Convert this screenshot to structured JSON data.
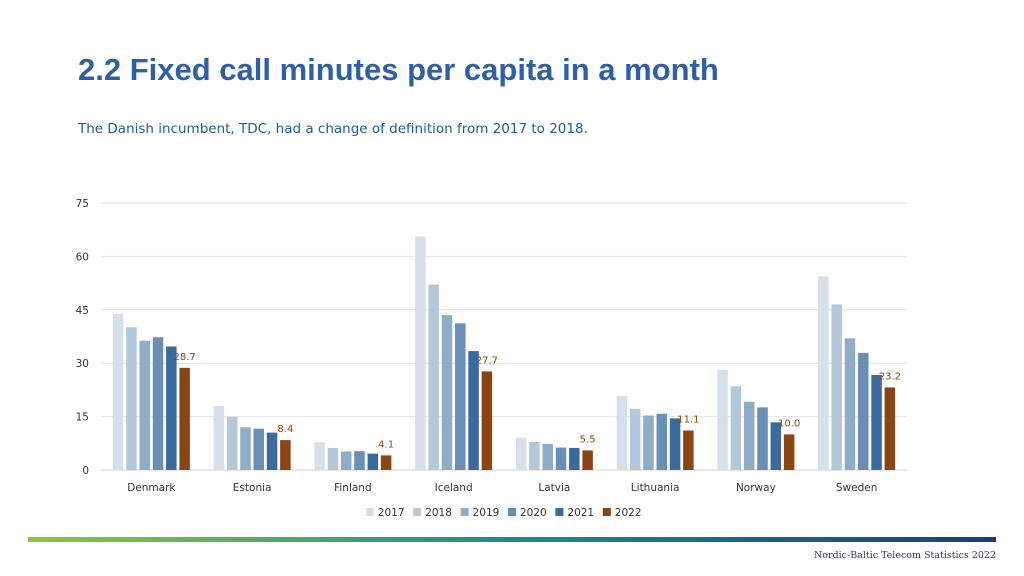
{
  "header": {
    "title": "2.2 Fixed call minutes per capita in a month",
    "subtitle": "The Danish incumbent, TDC, had a change of definition from 2017 to 2018."
  },
  "footer": {
    "text": "Nordic-Baltic Telecom Statistics 2022",
    "gradient_colors": [
      "#8cc63f",
      "#1f8a8a",
      "#1a3d7c"
    ]
  },
  "chart_data": {
    "type": "bar",
    "title": "",
    "xlabel": "",
    "ylabel": "",
    "ylim": [
      0,
      75
    ],
    "yticks": [
      0,
      15,
      30,
      45,
      60,
      75
    ],
    "grid": true,
    "legend_position": "bottom",
    "categories": [
      "Denmark",
      "Estonia",
      "Finland",
      "Iceland",
      "Latvia",
      "Lithuania",
      "Norway",
      "Sweden"
    ],
    "series": [
      {
        "name": "2017",
        "color": "#d6e0ea",
        "values": [
          43.9,
          18.0,
          7.8,
          65.6,
          9.1,
          20.8,
          28.1,
          54.4
        ]
      },
      {
        "name": "2018",
        "color": "#b4c8dc",
        "values": [
          40.1,
          14.9,
          6.2,
          52.1,
          7.9,
          17.2,
          23.5,
          46.5
        ]
      },
      {
        "name": "2019",
        "color": "#8fadc9",
        "values": [
          36.3,
          12.0,
          5.2,
          43.5,
          7.3,
          15.3,
          19.2,
          37.0
        ]
      },
      {
        "name": "2020",
        "color": "#6a8fb6",
        "values": [
          37.3,
          11.6,
          5.3,
          41.2,
          6.3,
          15.8,
          17.6,
          32.9
        ]
      },
      {
        "name": "2021",
        "color": "#3b6a9e",
        "values": [
          34.7,
          10.5,
          4.6,
          33.4,
          6.2,
          14.5,
          13.4,
          26.7
        ]
      },
      {
        "name": "2022",
        "color": "#8b4513",
        "values": [
          28.7,
          8.4,
          4.1,
          27.7,
          5.5,
          11.1,
          10.0,
          23.2
        ]
      }
    ],
    "data_labels": [
      "28.7",
      "8.4",
      "4.1",
      "27.7",
      "5.5",
      "11.1",
      "10.0",
      "23.2"
    ],
    "data_label_color": "#8b4513"
  }
}
